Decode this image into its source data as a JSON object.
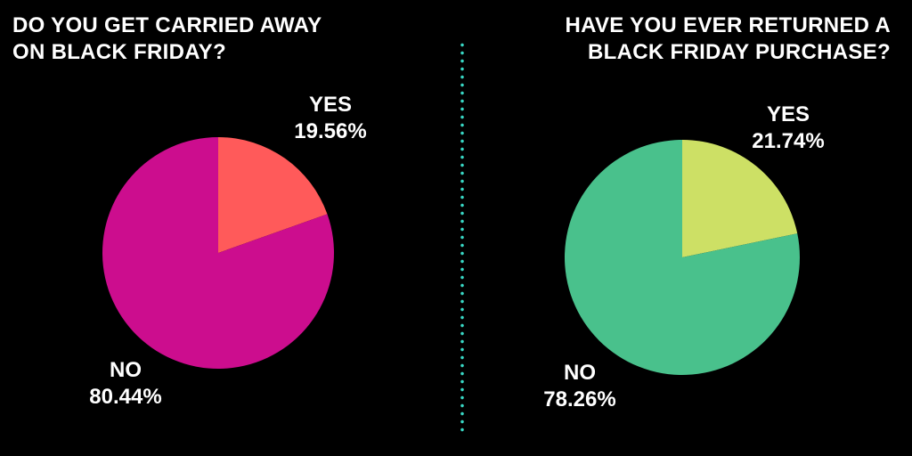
{
  "chart_data": [
    {
      "type": "pie",
      "title_lines": [
        "DO YOU GET CARRIED AWAY",
        "ON BLACK FRIDAY?"
      ],
      "slices": [
        {
          "label": "YES",
          "value": 19.56,
          "display": "19.56%",
          "color": "#ff5a5a"
        },
        {
          "label": "NO",
          "value": 80.44,
          "display": "80.44%",
          "color": "#cc0d8e"
        }
      ]
    },
    {
      "type": "pie",
      "title_lines": [
        "HAVE YOU EVER RETURNED A",
        "BLACK FRIDAY PURCHASE?"
      ],
      "slices": [
        {
          "label": "YES",
          "value": 21.74,
          "display": "21.74%",
          "color": "#cde065"
        },
        {
          "label": "NO",
          "value": 78.26,
          "display": "78.26%",
          "color": "#49c18c"
        }
      ]
    }
  ],
  "divider_color": "#38d7c4",
  "background": "#000000"
}
